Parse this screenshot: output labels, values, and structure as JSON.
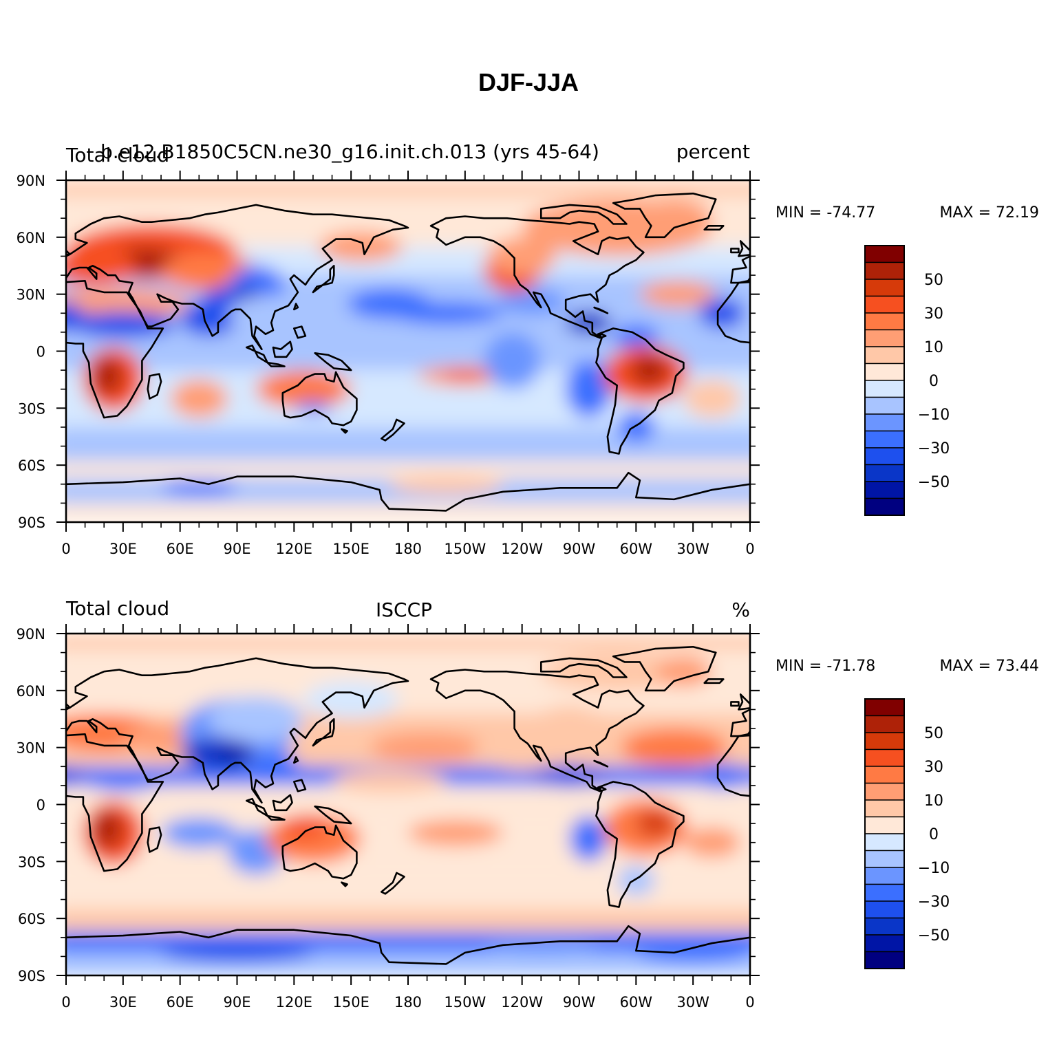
{
  "title": "DJF-JJA",
  "colors": {
    "levels": [
      "#000080",
      "#0015A6",
      "#0A36C8",
      "#1E50EE",
      "#3B6FFF",
      "#6B95FF",
      "#A8C4FF",
      "#D6E8FF",
      "#FFE8D8",
      "#FFC8A8",
      "#FF9E74",
      "#FF7A44",
      "#F65020",
      "#D63A0A",
      "#AE2208",
      "#800000"
    ]
  },
  "chart_data": [
    {
      "type": "contour-map",
      "left_label": "Total cloud",
      "center_label": "b.e12.B1850C5CN.ne30_g16.init.ch.013 (yrs 45-64)",
      "right_label": "percent",
      "min_label": "MIN = -74.77",
      "max_label": "MAX =  72.19",
      "lat_ticks": [
        "90N",
        "60N",
        "30N",
        "0",
        "30S",
        "60S",
        "90S"
      ],
      "lon_ticks": [
        "0",
        "30E",
        "60E",
        "90E",
        "120E",
        "150E",
        "180",
        "150W",
        "120W",
        "90W",
        "60W",
        "30W",
        "0"
      ],
      "colorbar_labels": [
        "50",
        "30",
        "10",
        "0",
        "-10",
        "-30",
        "-50"
      ],
      "lat_range": [
        -90,
        90
      ],
      "lon_range": [
        0,
        360
      ]
    },
    {
      "type": "contour-map",
      "left_label": "Total cloud",
      "center_label": "ISCCP",
      "right_label": "%",
      "min_label": "MIN = -71.78",
      "max_label": "MAX =  73.44",
      "lat_ticks": [
        "90N",
        "60N",
        "30N",
        "0",
        "30S",
        "60S",
        "90S"
      ],
      "lon_ticks": [
        "0",
        "30E",
        "60E",
        "90E",
        "120E",
        "150E",
        "180",
        "150W",
        "120W",
        "90W",
        "60W",
        "30W",
        "0"
      ],
      "colorbar_labels": [
        "50",
        "30",
        "10",
        "0",
        "-10",
        "-30",
        "-50"
      ],
      "lat_range": [
        -90,
        90
      ],
      "lon_range": [
        0,
        360
      ]
    }
  ]
}
